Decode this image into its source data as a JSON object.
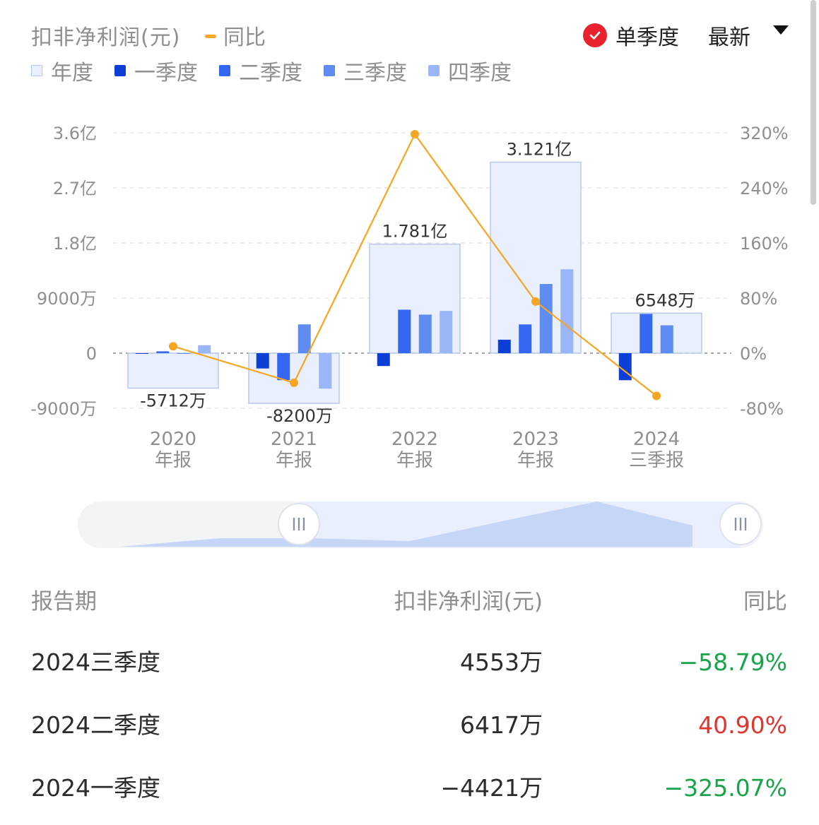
{
  "header": {
    "title": "扣非净利润(元)",
    "yoy_label": "同比",
    "single_season_label": "单季度",
    "latest_label": "最新"
  },
  "legend": [
    {
      "label": "年度",
      "color": "#e9effc"
    },
    {
      "label": "一季度",
      "color": "#0b3fd6"
    },
    {
      "label": "二季度",
      "color": "#3468f2"
    },
    {
      "label": "三季度",
      "color": "#5f8cf0"
    },
    {
      "label": "四季度",
      "color": "#9bb6f6"
    }
  ],
  "chart_data": {
    "type": "bar",
    "categories": [
      "2020\n年报",
      "2021\n年报",
      "2022\n年报",
      "2023\n年报",
      "2024\n三季报"
    ],
    "left_axis": {
      "ticks": [
        "3.6亿",
        "2.7亿",
        "1.8亿",
        "9000万",
        "0",
        "-9000万"
      ],
      "ylim_wan": [
        -9000,
        36000
      ]
    },
    "right_axis": {
      "ticks": [
        "320%",
        "240%",
        "160%",
        "80%",
        "0%",
        "-80%"
      ],
      "ylim_pct": [
        -80,
        320
      ]
    },
    "annual": [
      -5712,
      -8200,
      17810,
      31210,
      6548
    ],
    "annual_labels": [
      "-5712万",
      "-8200万",
      "1.781亿",
      "3.121亿",
      "6548万"
    ],
    "quarters": [
      [
        0,
        300,
        0,
        1300
      ],
      [
        -2500,
        -4400,
        4700,
        -5800
      ],
      [
        -2100,
        7100,
        6300,
        6900
      ],
      [
        2200,
        4700,
        11300,
        13700
      ],
      [
        -4421,
        6417,
        4553,
        null
      ]
    ],
    "yoy_pct": [
      10,
      -43,
      318,
      75,
      -62
    ],
    "colors": {
      "annual": "#e9effc",
      "q1": "#0b3fd6",
      "q2": "#3468f2",
      "q3": "#5f8cf0",
      "q4": "#9bb6f6",
      "yoy": "#f5a623"
    },
    "grid": true
  },
  "table": {
    "headers": [
      "报告期",
      "扣非净利润(元)",
      "同比"
    ],
    "rows": [
      {
        "period": "2024三季度",
        "value": "4553万",
        "yoy": "−58.79%",
        "yoy_color": "#1aa34a"
      },
      {
        "period": "2024二季度",
        "value": "6417万",
        "yoy": "40.90%",
        "yoy_color": "#e0342f"
      },
      {
        "period": "2024一季度",
        "value": "−4421万",
        "yoy": "−325.07%",
        "yoy_color": "#1aa34a"
      }
    ]
  }
}
